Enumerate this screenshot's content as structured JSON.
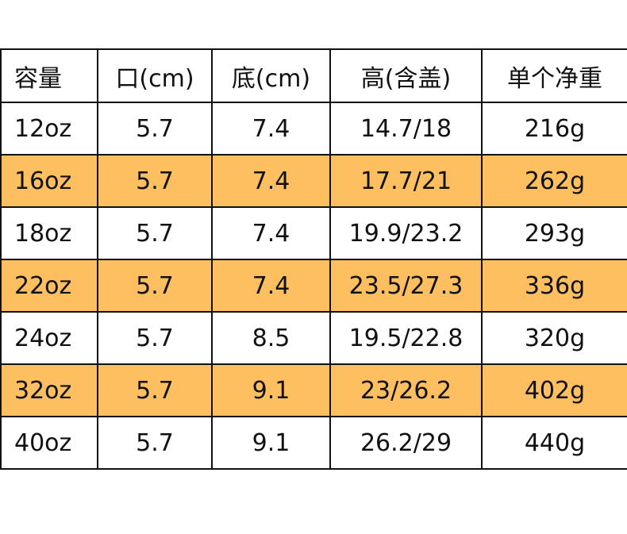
{
  "table": {
    "header": [
      "容量",
      "口(cm)",
      "底(cm)",
      "高(含盖)",
      "单个净重"
    ],
    "rows": [
      [
        "12oz",
        "5.7",
        "7.4",
        "14.7/18",
        "216g"
      ],
      [
        "16oz",
        "5.7",
        "7.4",
        "17.7/21",
        "262g"
      ],
      [
        "18oz",
        "5.7",
        "7.4",
        "19.9/23.2",
        "293g"
      ],
      [
        "22oz",
        "5.7",
        "7.4",
        "23.5/27.3",
        "336g"
      ],
      [
        "24oz",
        "5.7",
        "8.5",
        "19.5/22.8",
        "320g"
      ],
      [
        "32oz",
        "5.7",
        "9.1",
        "23/26.2",
        "402g"
      ],
      [
        "40oz",
        "5.7",
        "9.1",
        "26.2/29",
        "440g"
      ]
    ]
  }
}
